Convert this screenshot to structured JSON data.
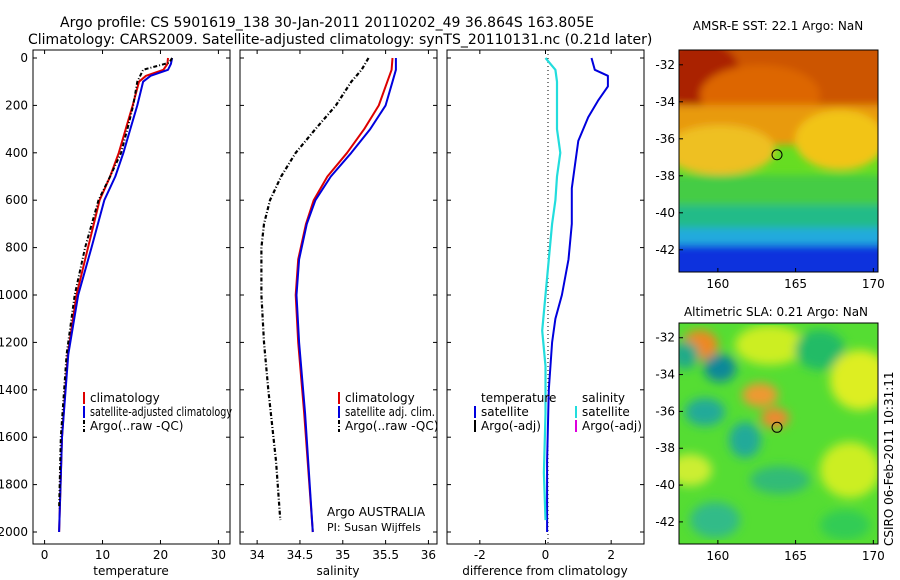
{
  "header": {
    "line1": "Argo profile: CS 5901619_138 30-Jan-2011 20110202_49 36.864S 163.805E",
    "line2": "Climatology: CARS2009. Satellite-adjusted climatology: synTS_20110131.nc (0.21d later)"
  },
  "panels": {
    "temperature": {
      "xlabel": "temperature",
      "xticks": [
        0,
        10,
        20,
        30
      ],
      "legend": [
        "climatology",
        "satellite-adjusted climatology",
        "Argo(..raw -QC)"
      ]
    },
    "salinity": {
      "xlabel": "salinity",
      "xticks": [
        34,
        34.5,
        35,
        35.5,
        36
      ],
      "legend": [
        "climatology",
        "satellite adj. clim.",
        "Argo(..raw -QC)"
      ],
      "note1": "Argo AUSTRALIA",
      "note2": "PI: Susan Wijffels"
    },
    "difference": {
      "xlabel": "difference from climatology",
      "xticks": [
        -2,
        0,
        2
      ],
      "legend_left_title": "temperature",
      "legend_left": [
        "satellite",
        "Argo(-adj)"
      ],
      "legend_right_title": "salinity",
      "legend_right": [
        "satellite",
        "Argo(-adj)"
      ]
    },
    "depth_ticks": [
      0,
      200,
      400,
      600,
      800,
      1000,
      1200,
      1400,
      1600,
      1800,
      2000
    ]
  },
  "maps": {
    "sst_title": "AMSR-E SST: 22.1 Argo: NaN",
    "sla_title": "Altimetric SLA: 0.21 Argo: NaN",
    "lat_ticks": [
      -32,
      -34,
      -36,
      -38,
      -40,
      -42
    ],
    "lon_ticks": [
      160,
      165,
      170
    ],
    "float_position": {
      "lat": -36.864,
      "lon": 163.805
    }
  },
  "footer_credit": "CSIRO 06-Feb-2011 10:31:11",
  "colors": {
    "climatology": "#dd0000",
    "satellite": "#0000dd",
    "argo": "#000000",
    "satellite_salinity": "#22dddd",
    "argo_salinity_adj": "#dd00dd"
  },
  "chart_data": [
    {
      "type": "line",
      "name": "temperature-profile",
      "xlabel": "temperature",
      "xlim": [
        -2,
        32
      ],
      "ylim": [
        0,
        2000
      ],
      "y_reversed": true,
      "series": [
        {
          "name": "climatology",
          "x": [
            21.3,
            21.2,
            20.5,
            17.5,
            16.3,
            15.2,
            14.0,
            12.8,
            11.3,
            9.5,
            7.5,
            5.5,
            4.0,
            3.0,
            2.5
          ],
          "y": [
            0,
            25,
            50,
            75,
            100,
            200,
            300,
            400,
            500,
            600,
            800,
            1000,
            1250,
            1600,
            2000
          ]
        },
        {
          "name": "satellite-adjusted climatology",
          "x": [
            22.0,
            21.8,
            21.3,
            18.3,
            17.0,
            16.0,
            14.8,
            13.6,
            12.2,
            10.3,
            8.1,
            5.8,
            4.1,
            3.0,
            2.5
          ],
          "y": [
            0,
            25,
            50,
            75,
            100,
            200,
            300,
            400,
            500,
            600,
            800,
            1000,
            1250,
            1600,
            2000
          ]
        },
        {
          "name": "Argo(..raw -QC)",
          "x": [
            22.0,
            21.5,
            17.0,
            16.5,
            16.0,
            15.3,
            14.3,
            13.2,
            11.3,
            9.3,
            7.0,
            5.2,
            3.8,
            2.8,
            2.5
          ],
          "y": [
            0,
            20,
            50,
            75,
            100,
            200,
            300,
            400,
            500,
            600,
            800,
            1000,
            1250,
            1600,
            1900
          ]
        }
      ]
    },
    {
      "type": "line",
      "name": "salinity-profile",
      "xlabel": "salinity",
      "xlim": [
        33.8,
        36.1
      ],
      "ylim": [
        0,
        2000
      ],
      "y_reversed": true,
      "series": [
        {
          "name": "climatology",
          "x": [
            35.58,
            35.57,
            35.52,
            35.42,
            35.25,
            35.05,
            34.82,
            34.66,
            34.57,
            34.48,
            34.45,
            34.48,
            34.55,
            34.65
          ],
          "y": [
            0,
            50,
            100,
            200,
            300,
            400,
            500,
            600,
            700,
            850,
            1000,
            1200,
            1500,
            2000
          ]
        },
        {
          "name": "satellite adj. clim.",
          "x": [
            35.62,
            35.62,
            35.58,
            35.5,
            35.32,
            35.1,
            34.86,
            34.68,
            34.58,
            34.49,
            34.46,
            34.49,
            34.56,
            34.65
          ],
          "y": [
            0,
            50,
            100,
            200,
            300,
            400,
            500,
            600,
            700,
            850,
            1000,
            1200,
            1500,
            2000
          ]
        },
        {
          "name": "Argo(..raw -QC)",
          "x": [
            35.3,
            35.22,
            35.1,
            34.92,
            34.68,
            34.45,
            34.28,
            34.15,
            34.08,
            34.05,
            34.05,
            34.08,
            34.13,
            34.22,
            34.27
          ],
          "y": [
            0,
            50,
            100,
            200,
            300,
            400,
            500,
            600,
            700,
            800,
            1000,
            1200,
            1400,
            1700,
            1950
          ]
        }
      ]
    },
    {
      "type": "line",
      "name": "difference-profile",
      "xlabel": "difference from climatology",
      "xlim": [
        -3,
        3
      ],
      "ylim": [
        0,
        2000
      ],
      "y_reversed": true,
      "series": [
        {
          "name": "temperature satellite",
          "x": [
            1.4,
            1.5,
            1.9,
            1.9,
            1.6,
            1.3,
            1.0,
            0.9,
            0.8,
            0.8,
            0.7,
            0.5,
            0.3,
            0.2,
            0.1,
            0.05,
            0.05
          ],
          "y": [
            0,
            50,
            75,
            120,
            180,
            250,
            350,
            450,
            550,
            700,
            850,
            1000,
            1100,
            1200,
            1400,
            1700,
            2000
          ]
        },
        {
          "name": "salinity satellite",
          "x": [
            0.0,
            0.3,
            0.35,
            0.35,
            0.35,
            0.45,
            0.35,
            0.3,
            0.2,
            0.1,
            0.0,
            -0.1,
            0.0,
            0.0,
            -0.05,
            0.0
          ],
          "y": [
            0,
            50,
            100,
            200,
            300,
            400,
            500,
            600,
            700,
            850,
            1000,
            1150,
            1300,
            1500,
            1750,
            1950
          ]
        }
      ]
    },
    {
      "type": "heatmap",
      "name": "sst-map",
      "title": "AMSR-E SST: 22.1 Argo: NaN",
      "xlim": [
        157.5,
        170.3
      ],
      "ylim": [
        -43.2,
        -31.2
      ]
    },
    {
      "type": "heatmap",
      "name": "sla-map",
      "title": "Altimetric SLA: 0.21 Argo: NaN",
      "xlim": [
        157.5,
        170.3
      ],
      "ylim": [
        -43.2,
        -31.2
      ]
    }
  ]
}
